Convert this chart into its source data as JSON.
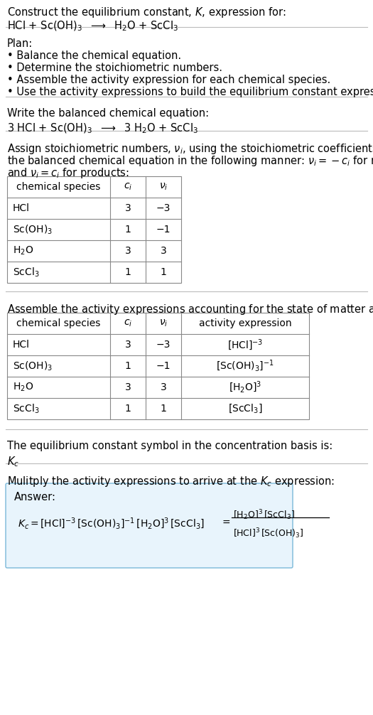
{
  "bg_color": "#ffffff",
  "answer_box_color": "#e8f4fc",
  "answer_box_border": "#7ab8d9",
  "font_size": 10.5,
  "small_font": 10.0,
  "table1_rows": [
    [
      "HCl",
      "3",
      "−3"
    ],
    [
      "Sc(OH)$_3$",
      "1",
      "−1"
    ],
    [
      "H$_2$O",
      "3",
      "3"
    ],
    [
      "ScCl$_3$",
      "1",
      "1"
    ]
  ],
  "table2_rows": [
    [
      "HCl",
      "3",
      "−3",
      "[HCl]$^{-3}$"
    ],
    [
      "Sc(OH)$_3$",
      "1",
      "−1",
      "[Sc(OH)$_3$]$^{-1}$"
    ],
    [
      "H$_2$O",
      "3",
      "3",
      "[H$_2$O]$^3$"
    ],
    [
      "ScCl$_3$",
      "1",
      "1",
      "[ScCl$_3$]"
    ]
  ]
}
